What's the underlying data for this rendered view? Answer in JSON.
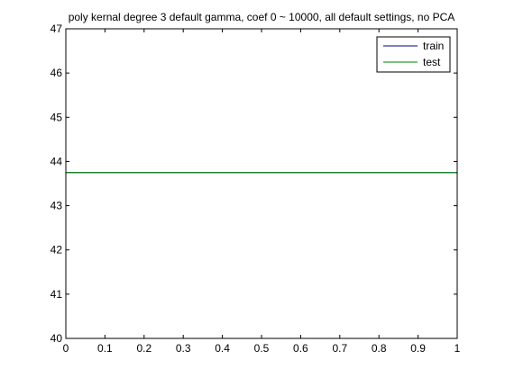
{
  "chart_data": {
    "type": "line",
    "title": "poly kernal degree 3 default gamma, coef 0 ~ 10000, all default settings, no PCA",
    "xlabel": "",
    "ylabel": "",
    "xlim": [
      0,
      1
    ],
    "ylim": [
      40,
      47
    ],
    "x_ticks": [
      "0",
      "0.1",
      "0.2",
      "0.3",
      "0.4",
      "0.5",
      "0.6",
      "0.7",
      "0.8",
      "0.9",
      "1"
    ],
    "y_ticks": [
      "40",
      "41",
      "42",
      "43",
      "44",
      "45",
      "46",
      "47"
    ],
    "grid": false,
    "legend": {
      "position": "top-right",
      "entries": [
        "train",
        "test"
      ]
    },
    "series": [
      {
        "name": "train",
        "color": "#00007f",
        "x": [
          0,
          1
        ],
        "y": [
          43.75,
          43.75
        ]
      },
      {
        "name": "test",
        "color": "#007f00",
        "x": [
          0,
          1
        ],
        "y": [
          43.75,
          43.75
        ]
      }
    ]
  }
}
